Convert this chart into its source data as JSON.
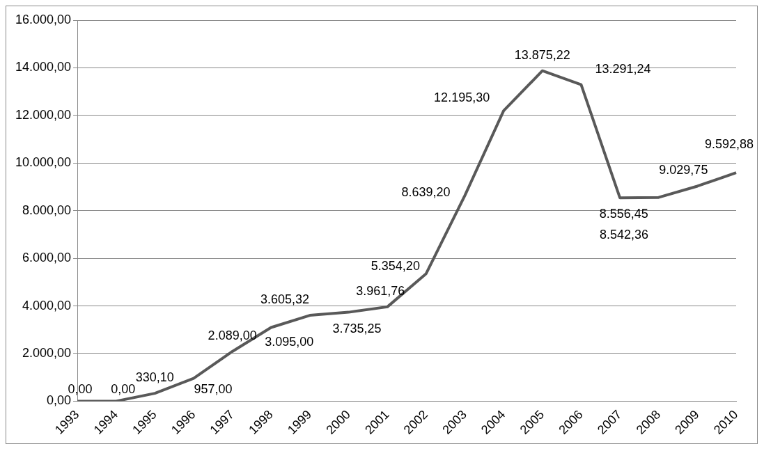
{
  "chart_data": {
    "type": "line",
    "categories": [
      "1993",
      "1994",
      "1995",
      "1996",
      "1997",
      "1998",
      "1999",
      "2000",
      "2001",
      "2002",
      "2003",
      "2004",
      "2005",
      "2006",
      "2007",
      "2008",
      "2009",
      "2010"
    ],
    "series": [
      {
        "color": "#595959",
        "values": [
          0,
          0,
          330.1,
          957.0,
          2089.0,
          3095.0,
          3605.32,
          3735.25,
          3961.76,
          5354.2,
          8639.2,
          12195.3,
          13875.22,
          13291.24,
          8542.36,
          8556.45,
          9029.75,
          9592.88
        ],
        "value_labels": [
          "0,00",
          "0,00",
          "330,10",
          "957,00",
          "2.089,00",
          "3.095,00",
          "3.605,32",
          "3.735,25",
          "3.961,76",
          "5.354,20",
          "8.639,20",
          "12.195,30",
          "13.875,22",
          "13.291,24",
          "8.542,36",
          "8.556,45",
          "9.029,75",
          "9.592,88"
        ]
      }
    ],
    "ylim": [
      0,
      16000
    ],
    "yticks": [
      {
        "value": 0,
        "label": "0,00"
      },
      {
        "value": 2000,
        "label": "2.000,00"
      },
      {
        "value": 4000,
        "label": "4.000,00"
      },
      {
        "value": 6000,
        "label": "6.000,00"
      },
      {
        "value": 8000,
        "label": "8.000,00"
      },
      {
        "value": 10000,
        "label": "10.000,00"
      },
      {
        "value": 12000,
        "label": "12.000,00"
      },
      {
        "value": 14000,
        "label": "14.000,00"
      },
      {
        "value": 16000,
        "label": "16.000,00"
      }
    ],
    "grid": "y",
    "legend": false,
    "marker": "none",
    "line_style": "solid"
  }
}
